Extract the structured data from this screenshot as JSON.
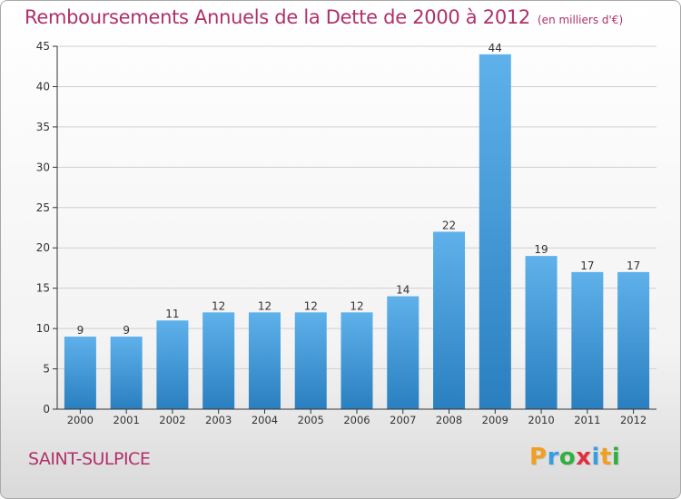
{
  "title": "Remboursements Annuels de la Dette de 2000 à 2012",
  "subtitle": "(en milliers d'€)",
  "location": "SAINT-SULPICE",
  "logo": {
    "letters": [
      "P",
      "r",
      "o",
      "x",
      "i",
      "t",
      "i"
    ],
    "colors": [
      "#f0a020",
      "#3a9de0",
      "#30b040",
      "#e03040",
      "#3a9de0",
      "#f0a020",
      "#30b040"
    ]
  },
  "colors": {
    "title": "#b0306a",
    "bar_light": "#5eb1ea",
    "bar_dark": "#2a7fc0",
    "grid": "#d0d0d0"
  },
  "chart_data": {
    "type": "bar",
    "categories": [
      "2000",
      "2001",
      "2002",
      "2003",
      "2004",
      "2005",
      "2006",
      "2007",
      "2008",
      "2009",
      "2010",
      "2011",
      "2012"
    ],
    "values": [
      9,
      9,
      11,
      12,
      12,
      12,
      12,
      14,
      22,
      44,
      19,
      17,
      17
    ],
    "ylim": [
      0,
      45
    ],
    "yticks": [
      0,
      5,
      10,
      15,
      20,
      25,
      30,
      35,
      40,
      45
    ],
    "grid": true,
    "xlabel": "",
    "ylabel": ""
  }
}
